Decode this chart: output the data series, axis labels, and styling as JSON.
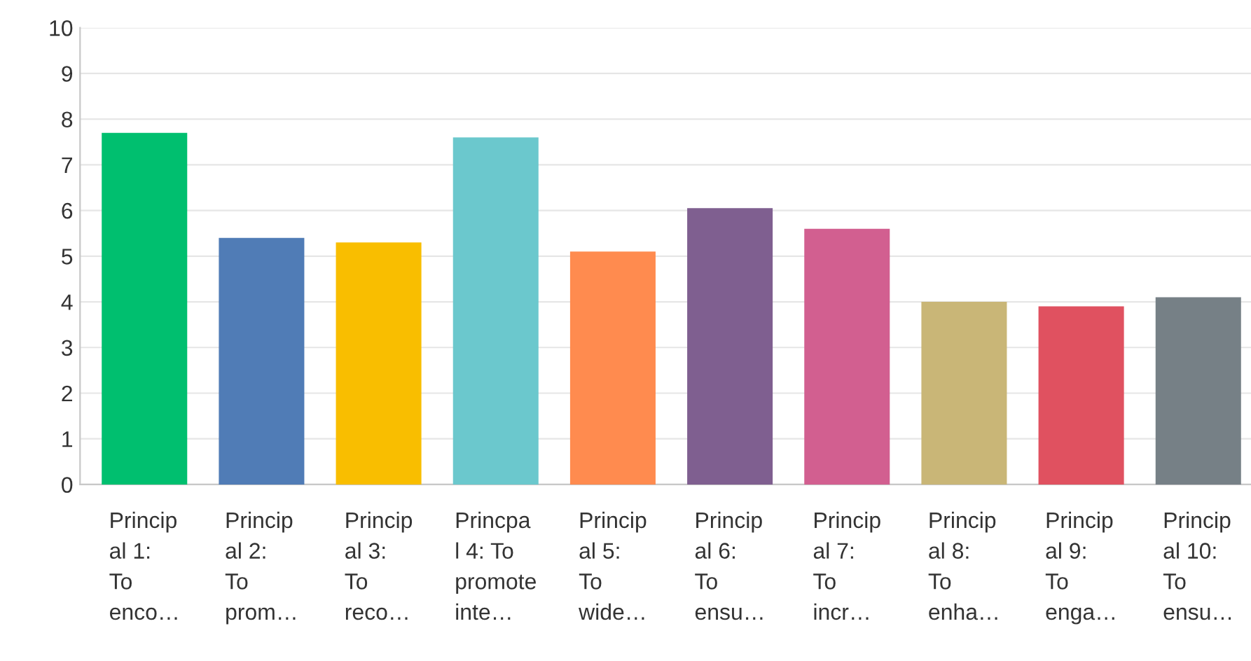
{
  "chart_data": {
    "type": "bar",
    "categories": [
      "Princip\nal 1:\nTo\nenco…",
      "Princip\nal 2:\nTo\nprom…",
      "Princip\nal 3:\nTo\nreco…",
      "Princpa\nl 4: To\npromote\ninte…",
      "Princip\nal 5:\nTo\nwide…",
      "Princip\nal 6:\nTo\nensu…",
      "Princip\nal 7:\nTo\nincr…",
      "Princip\nal 8:\nTo\nenha…",
      "Princip\nal 9:\nTo\nenga…",
      "Princip\nal 10:\nTo\nensu…"
    ],
    "values": [
      7.7,
      5.4,
      5.3,
      7.6,
      5.1,
      6.05,
      5.6,
      4.0,
      3.9,
      4.1
    ],
    "colors": [
      "#00bf6f",
      "#507cb6",
      "#f9be00",
      "#6bc8cd",
      "#ff8b4f",
      "#7f5f90",
      "#d25f90",
      "#c9b677",
      "#e05160",
      "#768086"
    ],
    "ylim": [
      0,
      10
    ],
    "yticks": [
      0,
      1,
      2,
      3,
      4,
      5,
      6,
      7,
      8,
      9,
      10
    ],
    "grid": "y",
    "legend": false
  }
}
